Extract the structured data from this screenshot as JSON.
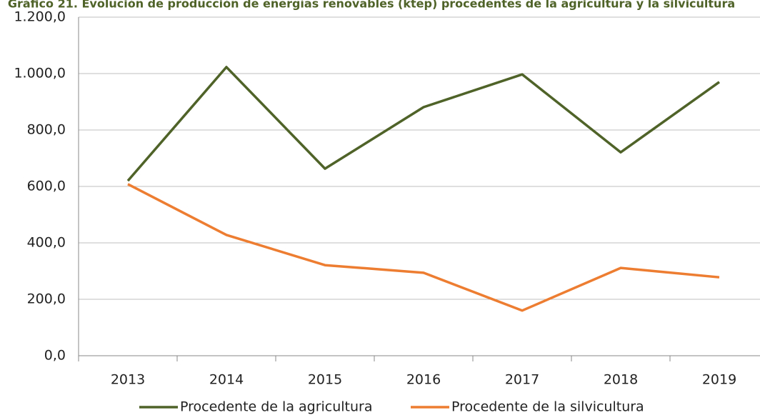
{
  "chart_data": {
    "type": "line",
    "title": "Gráfico 21. Evolución de producción de energías renovables (ktep) procedentes de la agricultura y la silvicultura",
    "categories": [
      "2013",
      "2014",
      "2015",
      "2016",
      "2017",
      "2018",
      "2019"
    ],
    "series": [
      {
        "name": "Procedente de la agricultura",
        "color": "#4f6228",
        "values": [
          620,
          1023,
          663,
          881,
          997,
          721,
          970
        ]
      },
      {
        "name": "Procedente de la silvicultura",
        "color": "#ed7d31",
        "values": [
          608,
          428,
          321,
          294,
          160,
          311,
          278
        ]
      }
    ],
    "ylim": [
      0,
      1200
    ],
    "yticks": [
      {
        "value": 0,
        "label": "0,0"
      },
      {
        "value": 200,
        "label": "200,0"
      },
      {
        "value": 400,
        "label": "400,0"
      },
      {
        "value": 600,
        "label": "600,0"
      },
      {
        "value": 800,
        "label": "800,0"
      },
      {
        "value": 1000,
        "label": "1.000,0"
      },
      {
        "value": 1200,
        "label": "1.200,0"
      }
    ],
    "grid": true,
    "legend": "bottom"
  }
}
